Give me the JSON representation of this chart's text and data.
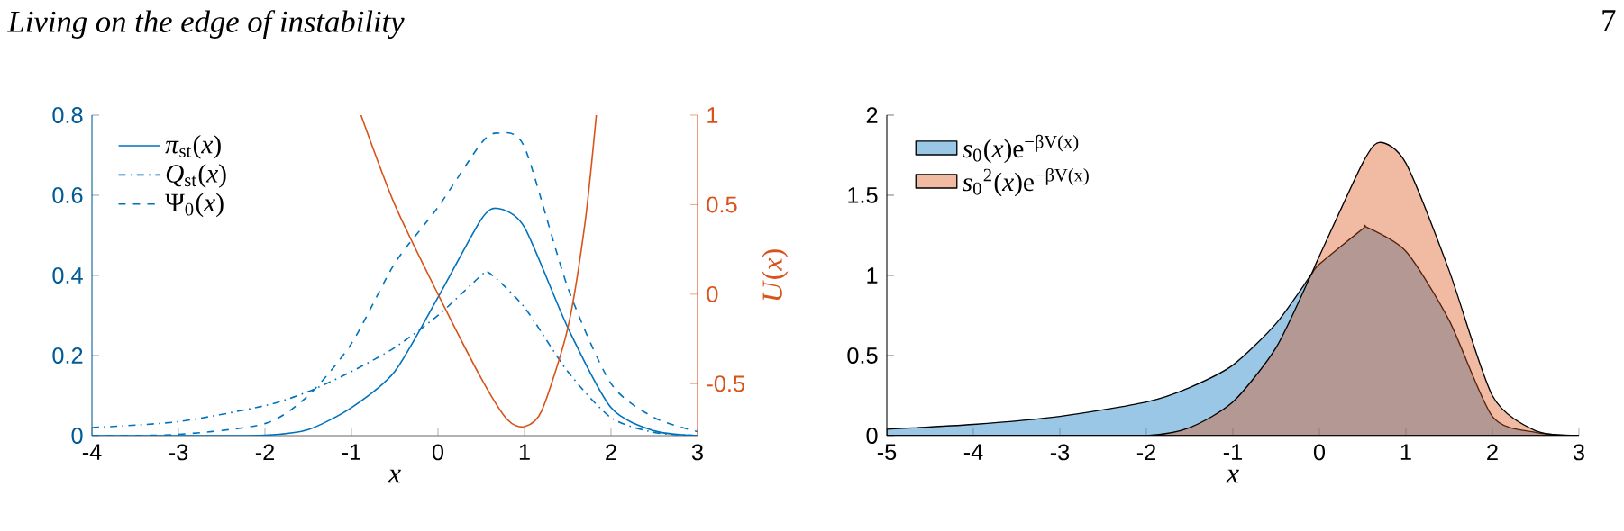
{
  "chart_data": [
    {
      "type": "line",
      "annotations": [
        "Living on the edge of instability",
        "7"
      ],
      "xlabel": "x",
      "y2label": "*U*(*x*)",
      "legend": "top left",
      "xlim": [
        -4,
        3
      ],
      "ylim": [
        0,
        0.8
      ],
      "y2lim": [
        -0.79,
        1
      ],
      "xticks": [
        -4,
        -3,
        -2,
        -1,
        0,
        1,
        2,
        3
      ],
      "yticks": [
        0,
        0.2,
        0.4,
        0.6,
        0.8
      ],
      "y2ticks": [
        -0.5,
        0,
        0.5,
        1
      ],
      "series": [
        {
          "name": "*π*$_{st}$(*x*)",
          "color": "#0072bd",
          "line_style": "solid",
          "x": [
            -4,
            -3,
            -2,
            -1.5,
            -1,
            -0.5,
            0,
            0.5,
            0.7,
            1,
            1.5,
            2,
            2.5,
            3
          ],
          "values": [
            0,
            0,
            0.001,
            0.015,
            0.07,
            0.16,
            0.345,
            0.54,
            0.567,
            0.52,
            0.27,
            0.07,
            0.012,
            0
          ]
        },
        {
          "name": "*Q*$_{st}$(*x*)",
          "color": "#0072bd",
          "line_style": "dashdot",
          "x": [
            -4,
            -3,
            -2,
            -1.5,
            -1,
            -0.5,
            0,
            0.5,
            0.6,
            1,
            1.5,
            2,
            2.5,
            3
          ],
          "values": [
            0.02,
            0.035,
            0.075,
            0.11,
            0.16,
            0.22,
            0.3,
            0.4,
            0.405,
            0.32,
            0.16,
            0.045,
            0.008,
            0
          ]
        },
        {
          "name": "Ψ$_{0}$(*x*)",
          "color": "#0072bd",
          "line_style": "dashed",
          "x": [
            -4,
            -3,
            -2,
            -1.5,
            -1,
            -0.5,
            0,
            0.5,
            0.7,
            1,
            1.5,
            2,
            2.5,
            3
          ],
          "values": [
            0,
            0.003,
            0.03,
            0.1,
            0.23,
            0.43,
            0.57,
            0.73,
            0.755,
            0.72,
            0.37,
            0.13,
            0.045,
            0.01
          ]
        },
        {
          "color": "#d95319",
          "line_style": "solid",
          "axis": "y2",
          "x": [
            -0.89,
            -0.5,
            0,
            0.5,
            0.8,
            1,
            1.2,
            1.5,
            1.7,
            1.83
          ],
          "values": [
            1,
            0.5,
            0,
            -0.47,
            -0.7,
            -0.74,
            -0.65,
            -0.19,
            0.4,
            1
          ]
        }
      ]
    },
    {
      "type": "area",
      "xlabel": "x",
      "legend": "top left",
      "xlim": [
        -5,
        3
      ],
      "ylim": [
        0,
        2
      ],
      "xticks": [
        -5,
        -4,
        -3,
        -2,
        -1,
        0,
        1,
        2,
        3
      ],
      "yticks": [
        0,
        0.5,
        1,
        1.5,
        2
      ],
      "series": [
        {
          "name": "*s*$_{0}$(*x*)e$^{−βV(x)}$",
          "color": "#0072bd",
          "x": [
            -5,
            -4,
            -3,
            -2,
            -1.5,
            -1,
            -0.5,
            -0.1,
            0,
            0.5,
            0.55,
            1,
            1.5,
            2,
            2.5,
            3
          ],
          "values": [
            0.04,
            0.07,
            0.12,
            0.21,
            0.3,
            0.44,
            0.7,
            1.0,
            1.07,
            1.29,
            1.3,
            1.15,
            0.72,
            0.12,
            0.02,
            0
          ]
        },
        {
          "name": "*s*$_{0}$$^{2}$(*x*)e$^{−βV(x)}$",
          "color": "#d95319",
          "x": [
            -5,
            -3,
            -2,
            -1.5,
            -1,
            -0.5,
            -0.1,
            0,
            0.5,
            0.7,
            1,
            1.5,
            2,
            2.5,
            3
          ],
          "values": [
            0,
            0,
            0,
            0.05,
            0.21,
            0.55,
            1.0,
            1.12,
            1.7,
            1.83,
            1.7,
            1.03,
            0.25,
            0.03,
            0
          ]
        }
      ]
    }
  ]
}
